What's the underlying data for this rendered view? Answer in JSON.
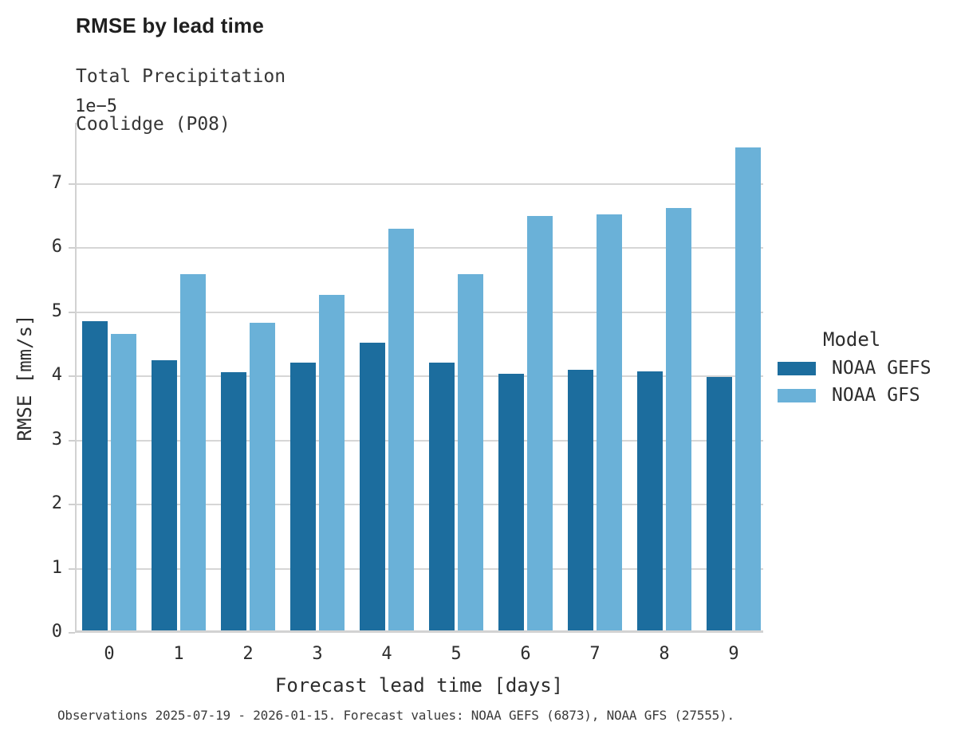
{
  "header": {
    "title": "RMSE by lead time",
    "subtitle_line1": "Total Precipitation",
    "subtitle_line2": "Coolidge (P08)"
  },
  "axes": {
    "y_offset_label": "1e−5",
    "y_label": "RMSE [mm/s]",
    "x_label": "Forecast lead time [days]",
    "y_ticks": [
      0,
      1,
      2,
      3,
      4,
      5,
      6,
      7
    ],
    "x_ticks": [
      "0",
      "1",
      "2",
      "3",
      "4",
      "5",
      "6",
      "7",
      "8",
      "9"
    ]
  },
  "legend": {
    "title": "Model",
    "entries": [
      {
        "label": "NOAA GEFS",
        "color": "#1c6d9e"
      },
      {
        "label": "NOAA GFS",
        "color": "#6ab1d8"
      }
    ]
  },
  "caption": "Observations 2025-07-19 - 2026-01-15. Forecast values: NOAA GEFS (6873), NOAA GFS (27555).",
  "chart_data": {
    "type": "bar",
    "title": "RMSE by lead time",
    "subtitle": "Total Precipitation, Coolidge (P08)",
    "categories": [
      0,
      1,
      2,
      3,
      4,
      5,
      6,
      7,
      8,
      9
    ],
    "series": [
      {
        "name": "NOAA GEFS",
        "color": "#1c6d9e",
        "values_x1e-5": [
          4.82,
          4.21,
          4.02,
          4.18,
          4.48,
          4.18,
          4.0,
          4.06,
          4.04,
          3.95
        ]
      },
      {
        "name": "NOAA GFS",
        "color": "#6ab1d8",
        "values_x1e-5": [
          4.62,
          5.55,
          4.8,
          5.23,
          6.26,
          5.55,
          6.46,
          6.49,
          6.58,
          7.53
        ]
      }
    ],
    "xlabel": "Forecast lead time [days]",
    "ylabel": "RMSE [mm/s]",
    "y_scale_factor": "1e-5",
    "ylim_x1e-5": [
      0,
      7.95
    ],
    "grid": "horizontal",
    "legend_title": "Model",
    "legend_position": "right"
  }
}
